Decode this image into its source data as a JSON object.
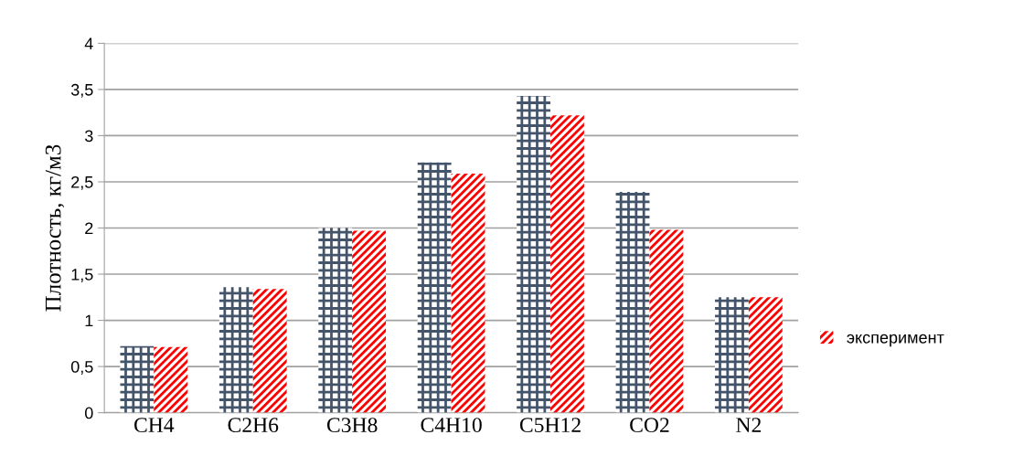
{
  "chart_data": {
    "type": "bar",
    "ylabel": "Плотность, кг/м3",
    "categories": [
      "CH4",
      "C2H6",
      "C3H8",
      "C4H10",
      "C5H12",
      "CO2",
      "N2"
    ],
    "series": [
      {
        "color": "#44546a",
        "values": [
          0.72,
          1.36,
          2.0,
          2.71,
          3.43,
          2.39,
          1.25
        ]
      },
      {
        "name": "эксперимент",
        "color": "#ff0000",
        "values": [
          0.71,
          1.34,
          1.97,
          2.59,
          3.22,
          1.98,
          1.25
        ]
      }
    ],
    "ylim": [
      0,
      4
    ],
    "yticks": [
      0,
      {
        "value": 0.5,
        "label": "0,5"
      },
      1,
      {
        "value": 1.5,
        "label": "1,5"
      },
      2,
      {
        "value": 2.5,
        "label": "2,5"
      },
      3,
      {
        "value": 3.5,
        "label": "3,5"
      },
      4
    ],
    "grid": "y",
    "legend": "right"
  }
}
